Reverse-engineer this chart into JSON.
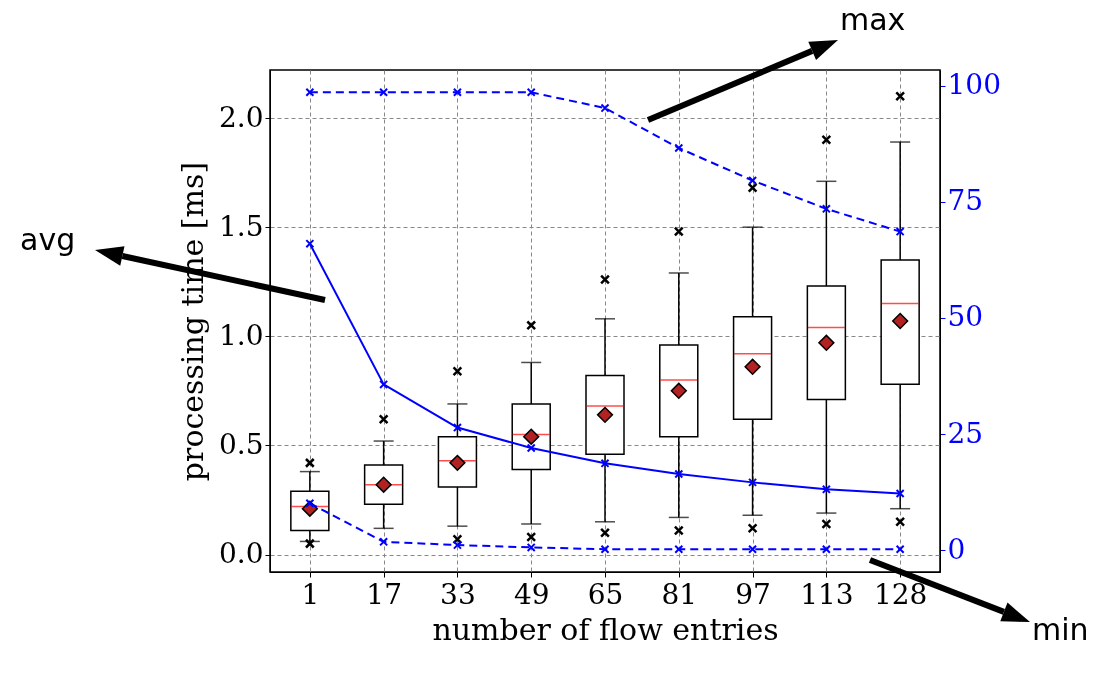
{
  "chart_data": {
    "type": "box",
    "xlabel": "number of flow entries",
    "ylabel": "processing time [ms]",
    "categories": [
      "1",
      "17",
      "33",
      "49",
      "65",
      "81",
      "97",
      "113",
      "128"
    ],
    "boxes": [
      {
        "low": 0.06,
        "q1": 0.11,
        "median": 0.22,
        "q3": 0.29,
        "high": 0.38,
        "mean": 0.21,
        "outliers": [
          0.42,
          0.05
        ]
      },
      {
        "low": 0.12,
        "q1": 0.23,
        "median": 0.32,
        "q3": 0.41,
        "high": 0.52,
        "mean": 0.32,
        "outliers": [
          0.62
        ]
      },
      {
        "low": 0.13,
        "q1": 0.31,
        "median": 0.43,
        "q3": 0.54,
        "high": 0.69,
        "mean": 0.42,
        "outliers": [
          0.84,
          0.07
        ]
      },
      {
        "low": 0.14,
        "q1": 0.39,
        "median": 0.55,
        "q3": 0.69,
        "high": 0.88,
        "mean": 0.54,
        "outliers": [
          1.05,
          0.08
        ]
      },
      {
        "low": 0.15,
        "q1": 0.46,
        "median": 0.68,
        "q3": 0.82,
        "high": 1.08,
        "mean": 0.64,
        "outliers": [
          1.26,
          0.1
        ]
      },
      {
        "low": 0.17,
        "q1": 0.54,
        "median": 0.8,
        "q3": 0.96,
        "high": 1.29,
        "mean": 0.75,
        "outliers": [
          1.48,
          0.11
        ]
      },
      {
        "low": 0.18,
        "q1": 0.62,
        "median": 0.92,
        "q3": 1.09,
        "high": 1.5,
        "mean": 0.86,
        "outliers": [
          1.68,
          0.12
        ]
      },
      {
        "low": 0.19,
        "q1": 0.71,
        "median": 1.04,
        "q3": 1.23,
        "high": 1.71,
        "mean": 0.97,
        "outliers": [
          1.9,
          0.14
        ]
      },
      {
        "low": 0.21,
        "q1": 0.78,
        "median": 1.15,
        "q3": 1.35,
        "high": 1.89,
        "mean": 1.07,
        "outliers": [
          2.1,
          0.15
        ]
      }
    ],
    "series": [
      {
        "type": "line",
        "axis": "y2",
        "color": "#0000ff",
        "line_style": "dashed",
        "marker": "cross",
        "values": [
          98.6,
          98.6,
          98.6,
          98.6,
          95.2,
          86.6,
          79.6,
          73.5,
          68.6
        ]
      },
      {
        "type": "line",
        "axis": "y2",
        "color": "#0000ff",
        "line_style": "solid",
        "marker": "cross",
        "values": [
          66,
          35.7,
          26.4,
          22.0,
          18.7,
          16.4,
          14.6,
          13.1,
          12.2
        ]
      },
      {
        "type": "line",
        "axis": "y2",
        "color": "#0000ff",
        "line_style": "dashed",
        "marker": "cross",
        "values": [
          10.1,
          1.8,
          1.1,
          0.6,
          0.2,
          0.2,
          0.2,
          0.2,
          0.2
        ]
      }
    ],
    "ylim": [
      -0.08,
      2.22
    ],
    "yticks": [
      {
        "value": 0,
        "label": "0.0"
      },
      {
        "value": 0.5,
        "label": "0.5"
      },
      {
        "value": 1,
        "label": "1.0"
      },
      {
        "value": 1.5,
        "label": "1.5"
      },
      {
        "value": 2,
        "label": "2.0"
      }
    ],
    "y2lim": [
      -4.7,
      103.4
    ],
    "y2ticks": [
      0,
      25,
      50,
      75,
      100
    ],
    "grid": true,
    "annotations": [
      "max",
      "avg",
      "min"
    ]
  }
}
